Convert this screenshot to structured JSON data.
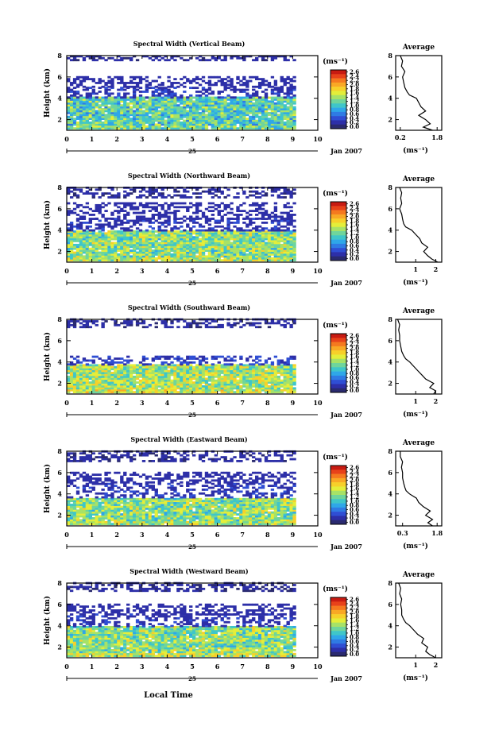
{
  "figure": {
    "xaxis_label": "Local Time",
    "date_day": "25",
    "date_month_year": "Jan 2007",
    "colorbar_unit": "(ms⁻¹)",
    "colorbar_ticks": [
      "2.6",
      "2.4",
      "2.2",
      "2.0",
      "1.8",
      "1.6",
      "1.4",
      "1.2",
      "1.0",
      "0.8",
      "0.6",
      "0.4",
      "0.2",
      "0.0"
    ],
    "colorbar_colors": [
      "#c81b12",
      "#e8421a",
      "#f5791f",
      "#f9a825",
      "#f7d02a",
      "#e4ee3a",
      "#a7e267",
      "#6fd59c",
      "#3fc6c9",
      "#2fa7e8",
      "#2f7be4",
      "#2f4ed4",
      "#2d2fa8",
      "#2a2a6f"
    ],
    "avg_title": "Average",
    "avg_xlabel": "(ms⁻¹)"
  },
  "chart_data": [
    {
      "type": "heatmap",
      "title": "Spectral Width (Vertical Beam)",
      "ylabel": "Height (km)",
      "xlabel": "Local Time",
      "xlim": [
        0,
        10
      ],
      "ylim": [
        1,
        8
      ],
      "x_ticks": [
        "0",
        "1",
        "2",
        "3",
        "4",
        "5",
        "6",
        "7",
        "8",
        "9",
        "10"
      ],
      "y_ticks": [
        "2",
        "4",
        "6",
        "8"
      ],
      "colorbar_ticks_shown": [
        "2.6",
        "2.4",
        "2.2",
        "2.0",
        "1.8",
        "1.6",
        "1.4",
        "1.2",
        "1.0",
        "0.8",
        "0.6",
        "0.4",
        "0.2",
        "0.0"
      ],
      "data_time_range": [
        0,
        9.1
      ],
      "layers": [
        {
          "h_from": 1.1,
          "h_to": 4.0,
          "level": 1.1
        },
        {
          "h_from": 4.0,
          "h_to": 5.0,
          "level": 0.25
        },
        {
          "h_from": 5.0,
          "h_to": 6.0,
          "level": 0.2
        },
        {
          "h_from": 7.5,
          "h_to": 8.0,
          "level": 0.15
        }
      ],
      "average_profile": {
        "title": "Average",
        "xlabel": "(ms⁻¹)",
        "x_ticks": [
          "0.2",
          "1.8"
        ],
        "xlim": [
          0,
          2.0
        ],
        "y_ticks": [
          "2",
          "4",
          "6",
          "8"
        ],
        "ylim": [
          1,
          8
        ],
        "height_km": [
          1.0,
          1.3,
          1.6,
          2.0,
          2.4,
          2.8,
          3.2,
          3.6,
          4.0,
          4.3,
          4.6,
          5.0,
          5.5,
          6.0,
          6.5,
          7.0,
          7.5,
          8.0
        ],
        "width": [
          1.6,
          1.2,
          1.5,
          1.3,
          1.0,
          1.3,
          1.1,
          1.0,
          0.9,
          0.6,
          0.5,
          0.4,
          0.35,
          0.3,
          0.4,
          0.25,
          0.3,
          0.2
        ]
      }
    },
    {
      "type": "heatmap",
      "title": "Spectral Width (Northward Beam)",
      "ylabel": "Height (km)",
      "xlabel": "Local Time",
      "xlim": [
        0,
        10
      ],
      "ylim": [
        1,
        8
      ],
      "x_ticks": [
        "0",
        "1",
        "2",
        "3",
        "4",
        "5",
        "6",
        "7",
        "8",
        "9",
        "10"
      ],
      "y_ticks": [
        "2",
        "4",
        "6",
        "8"
      ],
      "colorbar_ticks_shown": [
        "2.6",
        "2.4",
        "2.2",
        "2.0",
        "1.8",
        "1.6",
        "1.4",
        "1.2",
        "1.0",
        "0.8",
        "0.6",
        "0.4",
        "0.2",
        "0.0"
      ],
      "data_time_range": [
        0,
        9.1
      ],
      "layers": [
        {
          "h_from": 1.1,
          "h_to": 3.9,
          "level": 1.3
        },
        {
          "h_from": 3.9,
          "h_to": 5.0,
          "level": 0.25
        },
        {
          "h_from": 5.0,
          "h_to": 6.5,
          "level": 0.2
        },
        {
          "h_from": 7.0,
          "h_to": 8.0,
          "level": 0.15
        }
      ],
      "average_profile": {
        "title": "Average",
        "xlabel": "(ms⁻¹)",
        "x_ticks": [
          "1",
          "2"
        ],
        "xlim": [
          0,
          2.3
        ],
        "y_ticks": [
          "2",
          "4",
          "6",
          "8"
        ],
        "ylim": [
          1,
          8
        ],
        "height_km": [
          1.0,
          1.3,
          1.6,
          2.0,
          2.4,
          2.8,
          3.2,
          3.6,
          4.0,
          4.3,
          4.6,
          5.0,
          5.5,
          6.0,
          6.5,
          7.0,
          7.5,
          8.0
        ],
        "width": [
          2.1,
          1.8,
          1.6,
          1.4,
          1.6,
          1.3,
          1.2,
          1.0,
          0.8,
          0.5,
          0.4,
          0.35,
          0.3,
          0.2,
          0.3,
          0.25,
          0.3,
          0.2
        ]
      }
    },
    {
      "type": "heatmap",
      "title": "Spectral Width (Southward Beam)",
      "ylabel": "Height (km)",
      "xlabel": "Local Time",
      "xlim": [
        0,
        10
      ],
      "ylim": [
        1,
        8
      ],
      "x_ticks": [
        "0",
        "1",
        "2",
        "3",
        "4",
        "5",
        "6",
        "7",
        "8",
        "9",
        "10"
      ],
      "y_ticks": [
        "2",
        "4",
        "6",
        "8"
      ],
      "colorbar_ticks_shown": [
        "2.6",
        "2.4",
        "2.2",
        "2.0",
        "1.8",
        "1.6",
        "1.4",
        "1.2",
        "1.0",
        "0.8",
        "0.6",
        "0.4",
        "0.2",
        "0.0"
      ],
      "data_time_range": [
        0,
        9.1
      ],
      "layers": [
        {
          "h_from": 1.1,
          "h_to": 3.7,
          "level": 1.4
        },
        {
          "h_from": 3.7,
          "h_to": 4.5,
          "level": 0.3
        },
        {
          "h_from": 7.2,
          "h_to": 8.0,
          "level": 0.15
        }
      ],
      "average_profile": {
        "title": "Average",
        "xlabel": "(ms⁻¹)",
        "x_ticks": [
          "1",
          "2"
        ],
        "xlim": [
          0,
          2.3
        ],
        "y_ticks": [
          "2",
          "4",
          "6",
          "8"
        ],
        "ylim": [
          1,
          8
        ],
        "height_km": [
          1.0,
          1.3,
          1.6,
          2.0,
          2.4,
          2.8,
          3.2,
          3.6,
          4.0,
          4.3,
          4.6,
          5.0,
          5.5,
          6.0,
          6.5,
          7.0,
          7.5,
          8.0
        ],
        "width": [
          1.9,
          2.0,
          1.7,
          1.9,
          1.5,
          1.3,
          1.1,
          0.9,
          0.7,
          0.5,
          0.4,
          0.3,
          0.25,
          0.2,
          0.2,
          0.15,
          0.2,
          0.1
        ]
      }
    },
    {
      "type": "heatmap",
      "title": "Spectral Width (Eastward Beam)",
      "ylabel": "Height (km)",
      "xlabel": "Local Time",
      "xlim": [
        0,
        10
      ],
      "ylim": [
        1,
        8
      ],
      "x_ticks": [
        "0",
        "1",
        "2",
        "3",
        "4",
        "5",
        "6",
        "7",
        "8",
        "9",
        "10"
      ],
      "y_ticks": [
        "2",
        "4",
        "6",
        "8"
      ],
      "colorbar_ticks_shown": [
        "2.6",
        "2.4",
        "2.2",
        "2.0",
        "1.8",
        "1.6",
        "1.4",
        "1.2",
        "1.0",
        "0.8",
        "0.6",
        "0.4",
        "0.2",
        "0.0"
      ],
      "data_time_range": [
        0,
        9.1
      ],
      "layers": [
        {
          "h_from": 1.1,
          "h_to": 3.6,
          "level": 1.3
        },
        {
          "h_from": 3.6,
          "h_to": 5.0,
          "level": 0.25
        },
        {
          "h_from": 5.0,
          "h_to": 6.0,
          "level": 0.2
        },
        {
          "h_from": 7.0,
          "h_to": 8.0,
          "level": 0.15
        }
      ],
      "average_profile": {
        "title": "Average",
        "xlabel": "(ms⁻¹)",
        "x_ticks": [
          "0.3",
          "1.8"
        ],
        "xlim": [
          0,
          2.0
        ],
        "y_ticks": [
          "2",
          "4",
          "6",
          "8"
        ],
        "ylim": [
          1,
          8
        ],
        "height_km": [
          1.0,
          1.3,
          1.6,
          2.0,
          2.4,
          2.8,
          3.2,
          3.6,
          4.0,
          4.3,
          4.6,
          5.0,
          5.5,
          6.0,
          6.5,
          7.0,
          7.5,
          8.0
        ],
        "width": [
          1.6,
          1.4,
          1.6,
          1.3,
          1.5,
          1.2,
          1.0,
          0.9,
          0.6,
          0.45,
          0.4,
          0.35,
          0.3,
          0.3,
          0.25,
          0.3,
          0.2,
          0.2
        ]
      }
    },
    {
      "type": "heatmap",
      "title": "Spectral Width (Westward Beam)",
      "ylabel": "Height (km)",
      "xlabel": "Local Time",
      "xlim": [
        0,
        10
      ],
      "ylim": [
        1,
        8
      ],
      "x_ticks": [
        "0",
        "1",
        "2",
        "3",
        "4",
        "5",
        "6",
        "7",
        "8",
        "9",
        "10"
      ],
      "y_ticks": [
        "2",
        "4",
        "6",
        "8"
      ],
      "colorbar_ticks_shown": [
        "2.6",
        "2.4",
        "2.2",
        "2.0",
        "1.8",
        "1.6",
        "1.4",
        "1.2",
        "1.0",
        "0.8",
        "0.6",
        "0.4",
        "0.2",
        "0.0"
      ],
      "data_time_range": [
        0,
        9.1
      ],
      "layers": [
        {
          "h_from": 1.1,
          "h_to": 3.9,
          "level": 1.3
        },
        {
          "h_from": 3.9,
          "h_to": 5.0,
          "level": 0.25
        },
        {
          "h_from": 5.0,
          "h_to": 6.0,
          "level": 0.2
        },
        {
          "h_from": 7.2,
          "h_to": 8.0,
          "level": 0.15
        }
      ],
      "average_profile": {
        "title": "Average",
        "xlabel": "(ms⁻¹)",
        "x_ticks": [
          "1",
          "2"
        ],
        "xlim": [
          0,
          2.3
        ],
        "y_ticks": [
          "2",
          "4",
          "6",
          "8"
        ],
        "ylim": [
          1,
          8
        ],
        "height_km": [
          1.0,
          1.3,
          1.6,
          2.0,
          2.4,
          2.8,
          3.2,
          3.6,
          4.0,
          4.3,
          4.6,
          5.0,
          5.5,
          6.0,
          6.5,
          7.0,
          7.5,
          8.0
        ],
        "width": [
          2.0,
          1.7,
          1.5,
          1.6,
          1.3,
          1.4,
          1.1,
          0.9,
          0.7,
          0.5,
          0.4,
          0.3,
          0.3,
          0.25,
          0.3,
          0.2,
          0.25,
          0.15
        ]
      }
    }
  ]
}
